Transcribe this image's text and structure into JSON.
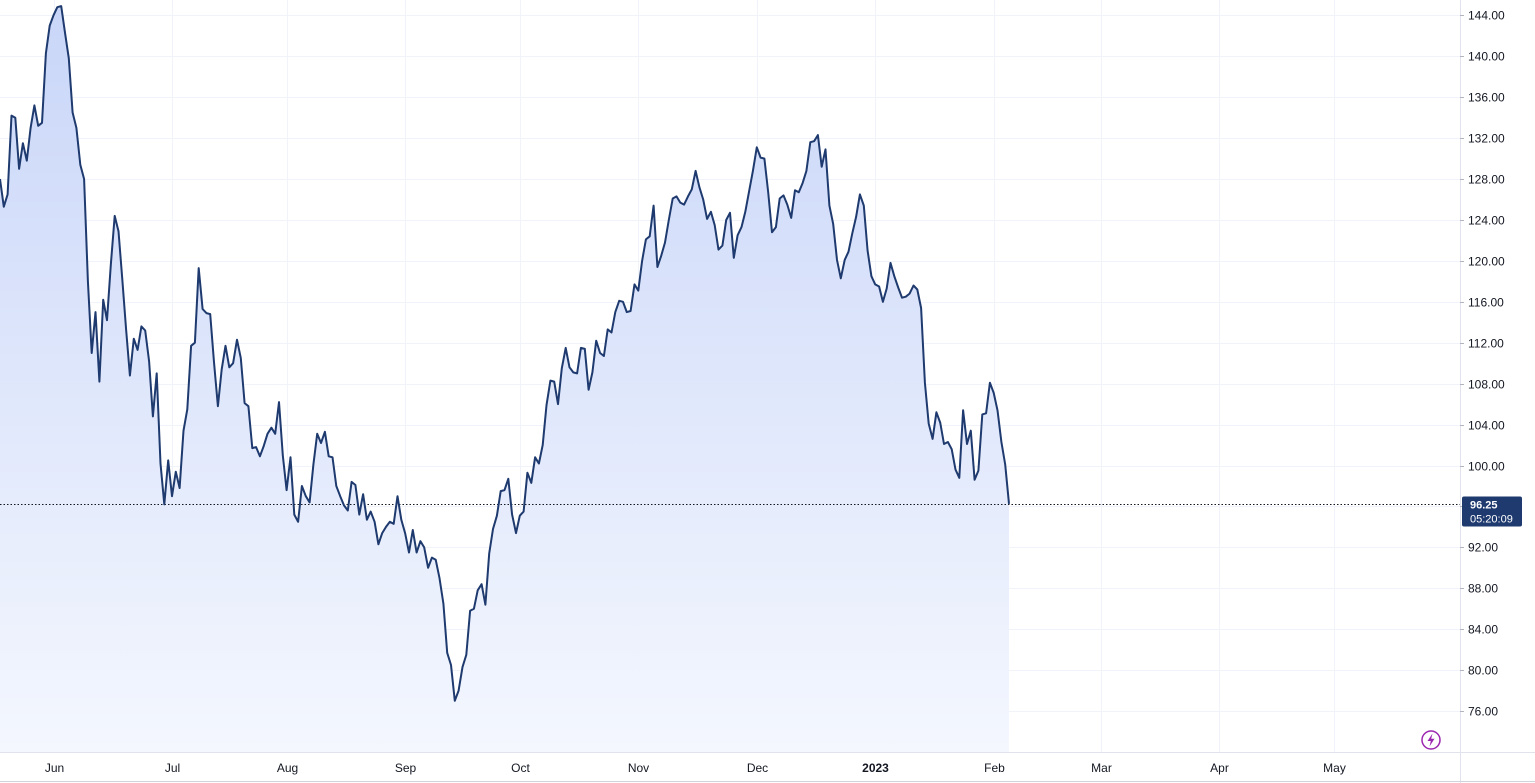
{
  "chart_data": {
    "type": "area",
    "title": "",
    "xlabel": "",
    "ylabel": "",
    "ylim": [
      72,
      145.5
    ],
    "y_ticks": [
      "144.00",
      "140.00",
      "136.00",
      "132.00",
      "128.00",
      "124.00",
      "120.00",
      "116.00",
      "112.00",
      "108.00",
      "104.00",
      "100.00",
      "96.00",
      "92.00",
      "88.00",
      "84.00",
      "80.00",
      "76.00"
    ],
    "x_ticks": [
      {
        "label": "Jun",
        "x": 6,
        "bold": false
      },
      {
        "label": "Jul",
        "x": 37,
        "bold": false
      },
      {
        "label": "Aug",
        "x": 67,
        "bold": false
      },
      {
        "label": "Sep",
        "x": 98,
        "bold": false
      },
      {
        "label": "Oct",
        "x": 128,
        "bold": false
      },
      {
        "label": "Nov",
        "x": 159,
        "bold": false
      },
      {
        "label": "Dec",
        "x": 190,
        "bold": false
      },
      {
        "label": "2023",
        "x": 221,
        "bold": true
      },
      {
        "label": "Feb",
        "x": 252,
        "bold": false
      },
      {
        "label": "Mar",
        "x": 280,
        "bold": false
      },
      {
        "label": "Apr",
        "x": 311,
        "bold": false
      },
      {
        "label": "May",
        "x": 341,
        "bold": false
      }
    ],
    "x_range": [
      -8,
      374
    ],
    "series": [
      {
        "line_color": "#1e3a6e",
        "fill_top": "#c9d6f8",
        "fill_bottom": "#f4f7fe",
        "points": [
          [
            -8,
            128
          ],
          [
            -7,
            125.3
          ],
          [
            -6,
            126.5
          ],
          [
            -5,
            134.2
          ],
          [
            -4,
            134
          ],
          [
            -3,
            129
          ],
          [
            -2,
            131.5
          ],
          [
            -1,
            129.8
          ],
          [
            0,
            133
          ],
          [
            1,
            135.2
          ],
          [
            2,
            133.2
          ],
          [
            3,
            133.5
          ],
          [
            4,
            140.3
          ],
          [
            5,
            143
          ],
          [
            6,
            144
          ],
          [
            7,
            144.8
          ],
          [
            8,
            144.9
          ],
          [
            9,
            142.3
          ],
          [
            10,
            139.8
          ],
          [
            11,
            134.5
          ],
          [
            12,
            133
          ],
          [
            13,
            129.4
          ],
          [
            14,
            128
          ],
          [
            15,
            118
          ],
          [
            16,
            111
          ],
          [
            17,
            115
          ],
          [
            18,
            108.2
          ],
          [
            19,
            116.2
          ],
          [
            20,
            114.2
          ],
          [
            21,
            119.6
          ],
          [
            22,
            124.4
          ],
          [
            23,
            122.9
          ],
          [
            24,
            118.2
          ],
          [
            25,
            113.3
          ],
          [
            26,
            108.8
          ],
          [
            27,
            112.4
          ],
          [
            28,
            111.3
          ],
          [
            29,
            113.6
          ],
          [
            30,
            113.2
          ],
          [
            31,
            110.2
          ],
          [
            32,
            104.8
          ],
          [
            33,
            109
          ],
          [
            34,
            100.2
          ],
          [
            35,
            96.2
          ],
          [
            36,
            100.5
          ],
          [
            37,
            97
          ],
          [
            38,
            99.4
          ],
          [
            39,
            97.8
          ],
          [
            40,
            103.4
          ],
          [
            41,
            105.5
          ],
          [
            42,
            111.7
          ],
          [
            43,
            112
          ],
          [
            44,
            119.3
          ],
          [
            45,
            115.3
          ],
          [
            46,
            114.9
          ],
          [
            47,
            114.8
          ],
          [
            48,
            110.1
          ],
          [
            49,
            105.8
          ],
          [
            50,
            109.4
          ],
          [
            51,
            111.7
          ],
          [
            52,
            109.6
          ],
          [
            53,
            110
          ],
          [
            54,
            112.3
          ],
          [
            55,
            110.5
          ],
          [
            56,
            106.1
          ],
          [
            57,
            105.8
          ],
          [
            58,
            101.7
          ],
          [
            59,
            101.8
          ],
          [
            60,
            100.9
          ],
          [
            61,
            101.9
          ],
          [
            62,
            103.1
          ],
          [
            63,
            103.7
          ],
          [
            64,
            103.1
          ],
          [
            65,
            106.2
          ],
          [
            66,
            101
          ],
          [
            67,
            97.6
          ],
          [
            68,
            100.8
          ],
          [
            69,
            95.2
          ],
          [
            70,
            94.5
          ],
          [
            71,
            98
          ],
          [
            72,
            97
          ],
          [
            73,
            96.4
          ],
          [
            74,
            100.1
          ],
          [
            75,
            103.1
          ],
          [
            76,
            102.2
          ],
          [
            77,
            103.3
          ],
          [
            78,
            100.9
          ],
          [
            79,
            100.8
          ],
          [
            80,
            98
          ],
          [
            81,
            97
          ],
          [
            82,
            96.1
          ],
          [
            83,
            95.6
          ],
          [
            84,
            98.4
          ],
          [
            85,
            98.1
          ],
          [
            86,
            95.2
          ],
          [
            87,
            97.2
          ],
          [
            88,
            94.7
          ],
          [
            89,
            95.5
          ],
          [
            90,
            94.5
          ],
          [
            91,
            92.3
          ],
          [
            92,
            93.4
          ],
          [
            93,
            94
          ],
          [
            94,
            94.5
          ],
          [
            95,
            94.3
          ],
          [
            96,
            97
          ],
          [
            97,
            94.7
          ],
          [
            98,
            93.4
          ],
          [
            99,
            91.5
          ],
          [
            100,
            93.7
          ],
          [
            101,
            91.5
          ],
          [
            102,
            92.6
          ],
          [
            103,
            92
          ],
          [
            104,
            90
          ],
          [
            105,
            91
          ],
          [
            106,
            90.8
          ],
          [
            107,
            89
          ],
          [
            108,
            86.5
          ],
          [
            109,
            81.7
          ],
          [
            110,
            80.5
          ],
          [
            111,
            77
          ],
          [
            112,
            78
          ],
          [
            113,
            80.3
          ],
          [
            114,
            81.5
          ],
          [
            115,
            85.8
          ],
          [
            116,
            86
          ],
          [
            117,
            87.8
          ],
          [
            118,
            88.4
          ],
          [
            119,
            86.4
          ],
          [
            120,
            91.4
          ],
          [
            121,
            93.8
          ],
          [
            122,
            95.1
          ],
          [
            123,
            97.5
          ],
          [
            124,
            97.6
          ],
          [
            125,
            98.7
          ],
          [
            126,
            95.2
          ],
          [
            127,
            93.4
          ],
          [
            128,
            95.1
          ],
          [
            129,
            95.5
          ],
          [
            130,
            99.3
          ],
          [
            131,
            98.3
          ],
          [
            132,
            100.8
          ],
          [
            133,
            100.2
          ],
          [
            134,
            102
          ],
          [
            135,
            105.9
          ],
          [
            136,
            108.3
          ],
          [
            137,
            108.2
          ],
          [
            138,
            106
          ],
          [
            139,
            109.5
          ],
          [
            140,
            111.5
          ],
          [
            141,
            109.6
          ],
          [
            142,
            109.1
          ],
          [
            143,
            109
          ],
          [
            144,
            111.5
          ],
          [
            145,
            111.4
          ],
          [
            146,
            107.4
          ],
          [
            147,
            109.1
          ],
          [
            148,
            112.2
          ],
          [
            149,
            111
          ],
          [
            150,
            110.7
          ],
          [
            151,
            113.3
          ],
          [
            152,
            113
          ],
          [
            153,
            115
          ],
          [
            154,
            116.1
          ],
          [
            155,
            116
          ],
          [
            156,
            115
          ],
          [
            157,
            115.1
          ],
          [
            158,
            117.7
          ],
          [
            159,
            117.1
          ],
          [
            160,
            120
          ],
          [
            161,
            122.1
          ],
          [
            162,
            122.4
          ],
          [
            163,
            125.4
          ],
          [
            164,
            119.4
          ],
          [
            165,
            120.5
          ],
          [
            166,
            121.8
          ],
          [
            167,
            124
          ],
          [
            168,
            126.1
          ],
          [
            169,
            126.3
          ],
          [
            170,
            125.7
          ],
          [
            171,
            125.5
          ],
          [
            172,
            126.3
          ],
          [
            173,
            127
          ],
          [
            174,
            128.8
          ],
          [
            175,
            127.2
          ],
          [
            176,
            126
          ],
          [
            177,
            124.1
          ],
          [
            178,
            124.8
          ],
          [
            179,
            123.5
          ],
          [
            180,
            121.1
          ],
          [
            181,
            121.5
          ],
          [
            182,
            124
          ],
          [
            183,
            124.7
          ],
          [
            184,
            120.3
          ],
          [
            185,
            122.5
          ],
          [
            186,
            123.3
          ],
          [
            187,
            124.8
          ],
          [
            188,
            126.8
          ],
          [
            189,
            128.8
          ],
          [
            190,
            131.1
          ],
          [
            191,
            130.1
          ],
          [
            192,
            130
          ],
          [
            193,
            126.7
          ],
          [
            194,
            122.8
          ],
          [
            195,
            123.3
          ],
          [
            196,
            126.1
          ],
          [
            197,
            126.4
          ],
          [
            198,
            125.5
          ],
          [
            199,
            124.2
          ],
          [
            200,
            126.9
          ],
          [
            201,
            126.7
          ],
          [
            202,
            127.6
          ],
          [
            203,
            128.8
          ],
          [
            204,
            131.6
          ],
          [
            205,
            131.7
          ],
          [
            206,
            132.3
          ],
          [
            207,
            129.2
          ],
          [
            208,
            130.9
          ],
          [
            209,
            125.4
          ],
          [
            210,
            123.6
          ],
          [
            211,
            120.1
          ],
          [
            212,
            118.3
          ],
          [
            213,
            120.1
          ],
          [
            214,
            120.9
          ],
          [
            215,
            122.7
          ],
          [
            216,
            124.3
          ],
          [
            217,
            126.5
          ],
          [
            218,
            125.4
          ],
          [
            219,
            121
          ],
          [
            220,
            118.5
          ],
          [
            221,
            117.7
          ],
          [
            222,
            117.5
          ],
          [
            223,
            116
          ],
          [
            224,
            117.3
          ],
          [
            225,
            119.8
          ],
          [
            226,
            118.5
          ],
          [
            227,
            117.4
          ],
          [
            228,
            116.4
          ],
          [
            229,
            116.5
          ],
          [
            230,
            116.8
          ],
          [
            231,
            117.6
          ],
          [
            232,
            117.2
          ],
          [
            233,
            115.4
          ],
          [
            234,
            108.1
          ],
          [
            235,
            104.1
          ],
          [
            236,
            102.6
          ],
          [
            237,
            105.2
          ],
          [
            238,
            104.2
          ],
          [
            239,
            102.1
          ],
          [
            240,
            102.3
          ],
          [
            241,
            101.6
          ],
          [
            242,
            99.6
          ],
          [
            243,
            98.8
          ],
          [
            244,
            105.4
          ],
          [
            245,
            102.1
          ],
          [
            246,
            103.4
          ],
          [
            247,
            98.6
          ],
          [
            248,
            99.5
          ],
          [
            249,
            105
          ],
          [
            250,
            105.1
          ],
          [
            251,
            108.1
          ],
          [
            252,
            107.1
          ],
          [
            253,
            105.4
          ],
          [
            254,
            102.3
          ],
          [
            255,
            100.1
          ],
          [
            256,
            96.25
          ]
        ]
      }
    ],
    "last_price": "96.25",
    "last_time": "05:20:09",
    "last_value": 96.25,
    "grid": true,
    "legend": "none"
  }
}
